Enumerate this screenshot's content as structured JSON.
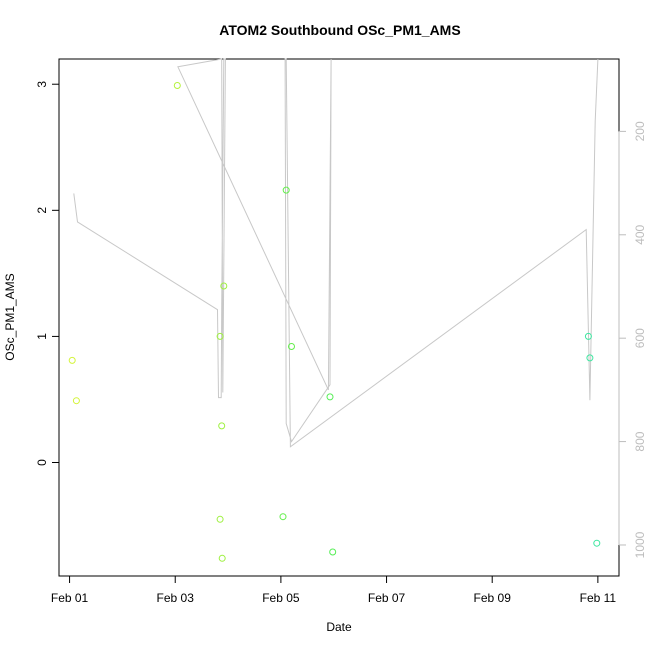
{
  "chart_data": {
    "type": "scatter",
    "title": "ATOM2 Southbound OSc_PM1_AMS",
    "xlabel": "Date",
    "ylabel": "OSc_PM1_AMS",
    "x_ticks": [
      "Feb 01",
      "Feb 03",
      "Feb 05",
      "Feb 07",
      "Feb 09",
      "Feb 11"
    ],
    "x_tick_days": [
      1,
      3,
      5,
      7,
      9,
      11
    ],
    "xlim_days": [
      0.8,
      11.4
    ],
    "ylim": [
      -0.9,
      3.2
    ],
    "y_ticks": [
      0,
      1,
      2,
      3
    ],
    "secondary_axis": {
      "position": "right",
      "reversed": true,
      "ticks": [
        200,
        400,
        600,
        800,
        1000
      ],
      "lim": [
        60,
        1060
      ],
      "color": "#bdbdbd"
    },
    "points": [
      {
        "day": 1.05,
        "y": 0.81,
        "color": "#d4f43a"
      },
      {
        "day": 1.13,
        "y": 0.49,
        "color": "#d4f43a"
      },
      {
        "day": 3.04,
        "y": 2.99,
        "color": "#b5f23d"
      },
      {
        "day": 3.85,
        "y": 1.0,
        "color": "#9ef040"
      },
      {
        "day": 3.85,
        "y": -0.45,
        "color": "#9ef040"
      },
      {
        "day": 3.88,
        "y": 0.29,
        "color": "#9ef040"
      },
      {
        "day": 3.89,
        "y": -0.76,
        "color": "#9ef040"
      },
      {
        "day": 3.92,
        "y": 1.4,
        "color": "#9ef040"
      },
      {
        "day": 5.04,
        "y": -0.43,
        "color": "#62ee4a"
      },
      {
        "day": 5.1,
        "y": 2.16,
        "color": "#62ee4a"
      },
      {
        "day": 5.2,
        "y": 0.92,
        "color": "#62ee4a"
      },
      {
        "day": 5.93,
        "y": 0.52,
        "color": "#55ee55"
      },
      {
        "day": 5.98,
        "y": -0.71,
        "color": "#55ee55"
      },
      {
        "day": 10.82,
        "y": 1.0,
        "color": "#3ee6a0"
      },
      {
        "day": 10.85,
        "y": 0.83,
        "color": "#3ee6a0"
      },
      {
        "day": 10.98,
        "y": -0.64,
        "color": "#3ee6a0"
      }
    ],
    "secondary_line": {
      "color": "#c8c8c8",
      "points": [
        {
          "day": 1.08,
          "v": 320
        },
        {
          "day": 1.15,
          "v": 375
        },
        {
          "day": 3.8,
          "v": 545
        },
        {
          "day": 3.82,
          "v": 715
        },
        {
          "day": 3.87,
          "v": 715
        },
        {
          "day": 3.88,
          "v": 540
        },
        {
          "day": 3.92,
          "v": 60
        },
        {
          "day": 3.95,
          "v": 60
        },
        {
          "day": 3.9,
          "v": 705
        },
        {
          "day": 3.88,
          "v": 60
        },
        {
          "day": 3.05,
          "v": 75
        },
        {
          "day": 5.9,
          "v": 700
        },
        {
          "day": 5.95,
          "v": 60
        },
        {
          "day": 5.93,
          "v": 690
        },
        {
          "day": 5.2,
          "v": 800
        },
        {
          "day": 5.1,
          "v": 765
        },
        {
          "day": 5.08,
          "v": 60
        },
        {
          "day": 5.1,
          "v": 60
        },
        {
          "day": 5.18,
          "v": 810
        },
        {
          "day": 10.78,
          "v": 390
        },
        {
          "day": 10.85,
          "v": 720
        },
        {
          "day": 10.95,
          "v": 180
        },
        {
          "day": 11.0,
          "v": 60
        }
      ]
    }
  }
}
